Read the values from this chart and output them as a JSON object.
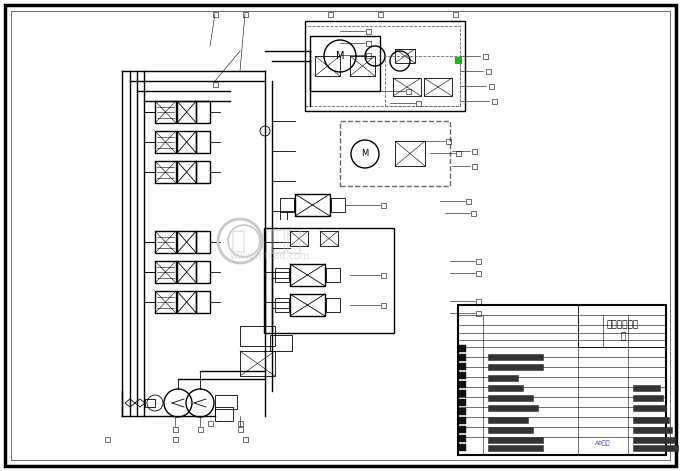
{
  "bg_color": "#ffffff",
  "line_color": "#000000",
  "watermark_color": "#c8c8c8",
  "green_color": "#00cc00",
  "title_text": "液压系统原理",
  "title_text2": "图",
  "title_sub": "A0张数",
  "fig_width": 6.81,
  "fig_height": 4.71,
  "dpi": 100
}
